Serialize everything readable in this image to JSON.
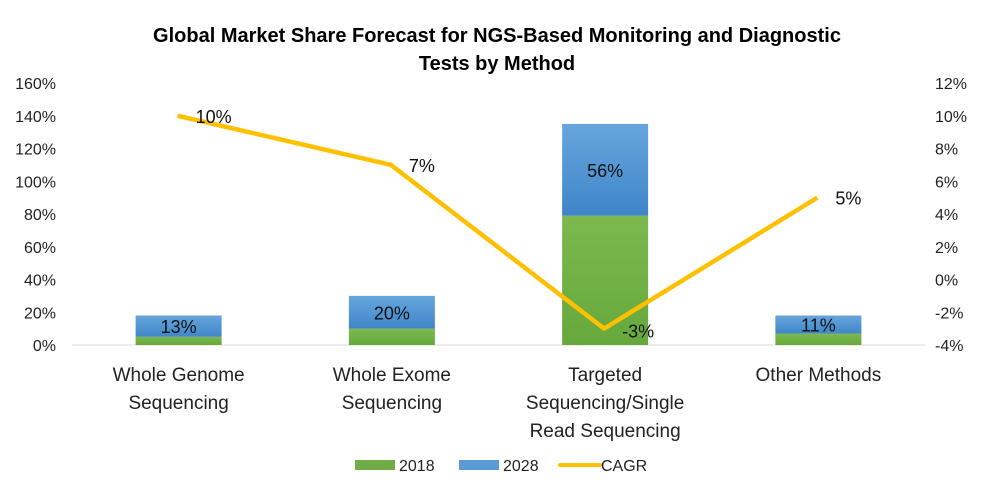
{
  "chart_data": {
    "type": "bar",
    "title": "Global Market Share Forecast for NGS-Based Monitoring and Diagnostic Tests by Method",
    "title_lines": [
      "Global Market Share Forecast for NGS-Based Monitoring and Diagnostic",
      "Tests by Method"
    ],
    "categories": [
      "Whole Genome Sequencing",
      "Whole Exome Sequencing",
      "Targeted Sequencing/Single Read Sequencing",
      "Other Methods"
    ],
    "category_lines": [
      [
        "Whole Genome",
        "Sequencing"
      ],
      [
        "Whole Exome",
        "Sequencing"
      ],
      [
        "Targeted",
        "Sequencing/Single",
        "Read Sequencing"
      ],
      [
        "Other Methods"
      ]
    ],
    "series": [
      {
        "name": "2018",
        "type": "bar",
        "stacked": true,
        "axis": "left",
        "color": "#70ad47",
        "values": [
          5,
          10,
          79,
          7
        ]
      },
      {
        "name": "2028",
        "type": "bar",
        "stacked": true,
        "axis": "left",
        "color": "#5b9bd5",
        "values": [
          13,
          20,
          56,
          11
        ],
        "data_labels": [
          "13%",
          "20%",
          "56%",
          "11%"
        ]
      },
      {
        "name": "CAGR",
        "type": "line",
        "axis": "right",
        "color": "#ffc000",
        "values": [
          10,
          7,
          -3,
          5
        ],
        "data_labels": [
          "10%",
          "7%",
          "-3%",
          "5%"
        ]
      }
    ],
    "left_axis": {
      "min": 0,
      "max": 160,
      "step": 20,
      "ticks": [
        "0%",
        "20%",
        "40%",
        "60%",
        "80%",
        "100%",
        "120%",
        "140%",
        "160%"
      ]
    },
    "right_axis": {
      "min": -4,
      "max": 12,
      "step": 2,
      "ticks": [
        "-4%",
        "-2%",
        "0%",
        "2%",
        "4%",
        "6%",
        "8%",
        "10%",
        "12%"
      ]
    },
    "xlabel": "",
    "ylabel": "",
    "grid": false,
    "legend": {
      "position": "bottom",
      "entries": [
        "2018",
        "2028",
        "CAGR"
      ]
    }
  }
}
